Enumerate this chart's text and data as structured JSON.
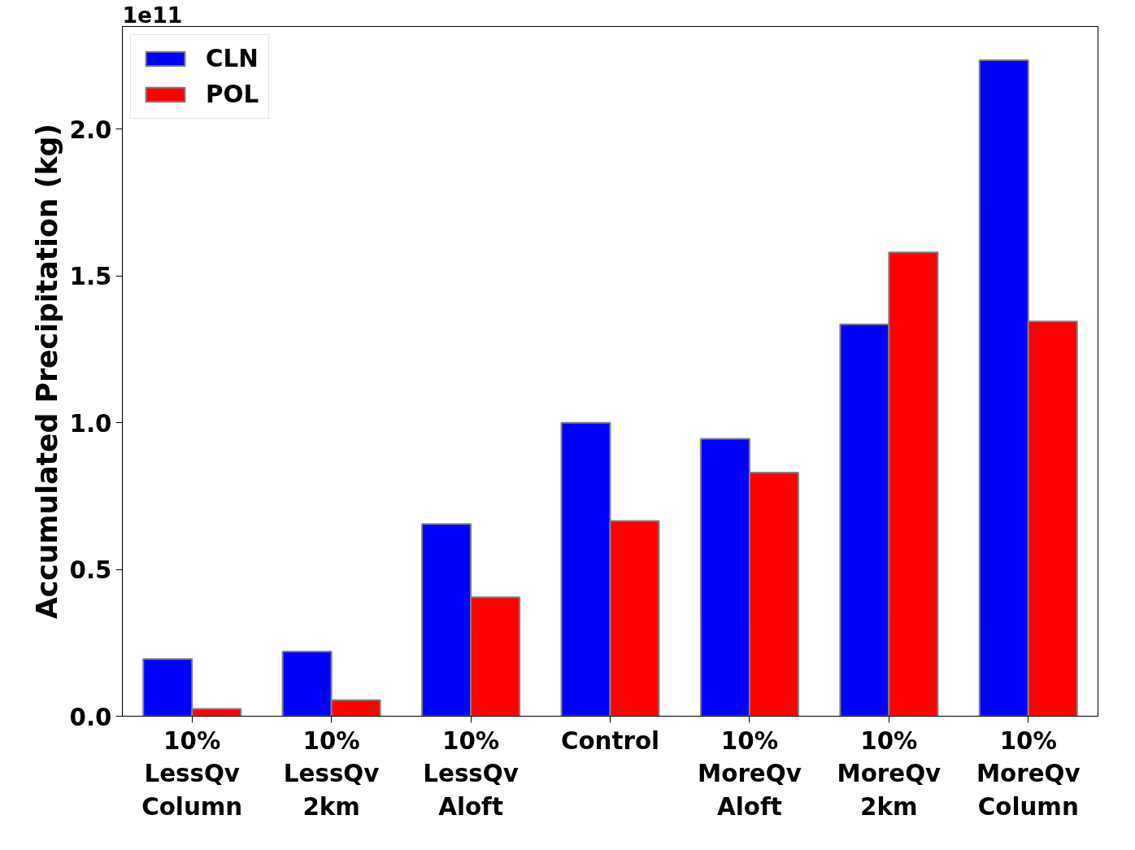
{
  "chart_data": {
    "type": "bar",
    "ylabel": "Accumulated Precipitation (kg)",
    "annotations": [
      "1e11"
    ],
    "categories": [
      "10%\nLessQv\nColumn",
      "10%\nLessQv\n2km",
      "10%\nLessQv\nAloft",
      "Control",
      "10%\nMoreQv\nAloft",
      "10%\nMoreQv\n2km",
      "10%\nMoreQv\nColumn"
    ],
    "series": [
      {
        "name": "CLN",
        "color": "#0000ff",
        "values": [
          0.195,
          0.22,
          0.655,
          1.0,
          0.945,
          1.335,
          2.235
        ]
      },
      {
        "name": "POL",
        "color": "#ff0000",
        "values": [
          0.025,
          0.055,
          0.405,
          0.665,
          0.83,
          1.58,
          1.345
        ]
      }
    ],
    "ylim": [
      0,
      2.35
    ],
    "yticks": [
      {
        "value": 0,
        "label": "0.0"
      },
      {
        "value": 0.5,
        "label": "0.5"
      },
      {
        "value": 1,
        "label": "1.0"
      },
      {
        "value": 1.5,
        "label": "1.5"
      },
      {
        "value": 2,
        "label": "2.0"
      }
    ],
    "grid": false,
    "legend": "top left"
  }
}
